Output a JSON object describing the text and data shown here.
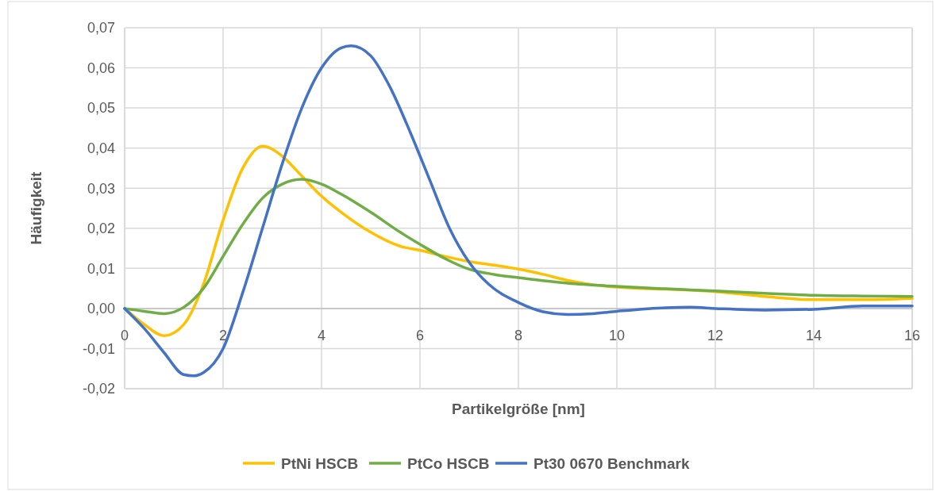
{
  "chart_data": {
    "type": "line",
    "xlabel": "Partikelgröße [nm]",
    "ylabel": "Häufigkeit",
    "xlim": [
      0,
      16
    ],
    "xticks": [
      0,
      2,
      4,
      6,
      8,
      10,
      12,
      14,
      16
    ],
    "ylim": [
      -0.02,
      0.07
    ],
    "yticks": [
      {
        "value": -0.02,
        "label": "-0,02"
      },
      {
        "value": -0.01,
        "label": "-0,01"
      },
      {
        "value": 0,
        "label": "0,00"
      },
      {
        "value": 0.01,
        "label": "0,01"
      },
      {
        "value": 0.02,
        "label": "0,02"
      },
      {
        "value": 0.03,
        "label": "0,03"
      },
      {
        "value": 0.04,
        "label": "0,04"
      },
      {
        "value": 0.05,
        "label": "0,05"
      },
      {
        "value": 0.06,
        "label": "0,06"
      },
      {
        "value": 0.07,
        "label": "0,07"
      }
    ],
    "grid": true,
    "legend": "bottom",
    "marker": "none",
    "line_style": "solid",
    "series": [
      {
        "name": "PtNi HSCB",
        "color": "#ffc000",
        "x": [
          0,
          0.4,
          0.8,
          1.2,
          1.6,
          2.0,
          2.4,
          2.8,
          3.2,
          3.6,
          4.0,
          4.4,
          5.0,
          5.6,
          6.0,
          6.5,
          7.0,
          7.5,
          8,
          8.5,
          9,
          10,
          11,
          12,
          13,
          14,
          15,
          16
        ],
        "values": [
          0,
          -0.004,
          -0.0068,
          -0.004,
          0.006,
          0.022,
          0.035,
          0.0405,
          0.038,
          0.033,
          0.028,
          0.024,
          0.019,
          0.0155,
          0.0145,
          0.013,
          0.0117,
          0.0108,
          0.0098,
          0.0085,
          0.007,
          0.0053,
          0.0048,
          0.0042,
          0.003,
          0.0022,
          0.0022,
          0.0025
        ]
      },
      {
        "name": "PtCo HSCB",
        "color": "#70ad47",
        "x": [
          0,
          0.4,
          0.8,
          1.2,
          1.6,
          2.0,
          2.4,
          2.8,
          3.2,
          3.6,
          4.0,
          4.4,
          5.0,
          5.6,
          6.0,
          6.5,
          7.0,
          7.5,
          8,
          9,
          10,
          11,
          12,
          13,
          14,
          15,
          16
        ],
        "values": [
          0,
          -0.0007,
          -0.0013,
          0.0003,
          0.005,
          0.013,
          0.021,
          0.0275,
          0.031,
          0.0322,
          0.031,
          0.0285,
          0.024,
          0.019,
          0.016,
          0.0125,
          0.0098,
          0.0085,
          0.0077,
          0.0063,
          0.0055,
          0.0049,
          0.0044,
          0.0038,
          0.0033,
          0.0031,
          0.003
        ]
      },
      {
        "name": "Pt30 0670 Benchmark",
        "color": "#4472c4",
        "x": [
          0,
          0.4,
          0.8,
          1.2,
          1.4,
          1.6,
          2.0,
          2.4,
          2.8,
          3.2,
          3.6,
          4.0,
          4.4,
          4.6,
          5.0,
          5.4,
          5.8,
          6.2,
          6.6,
          7.0,
          7.4,
          8.0,
          8.5,
          9.0,
          9.5,
          10,
          11,
          11.5,
          12,
          13,
          14,
          15,
          16
        ],
        "values": [
          0,
          -0.005,
          -0.011,
          -0.0165,
          -0.0168,
          -0.016,
          -0.01,
          0.004,
          0.02,
          0.036,
          0.05,
          0.06,
          0.065,
          0.0655,
          0.063,
          0.055,
          0.044,
          0.032,
          0.02,
          0.0115,
          0.006,
          0.0015,
          -0.0008,
          -0.0015,
          -0.0013,
          -0.0007,
          0.0002,
          0.0003,
          0,
          -0.0004,
          -0.0002,
          0.0006,
          0.0006
        ]
      }
    ]
  }
}
